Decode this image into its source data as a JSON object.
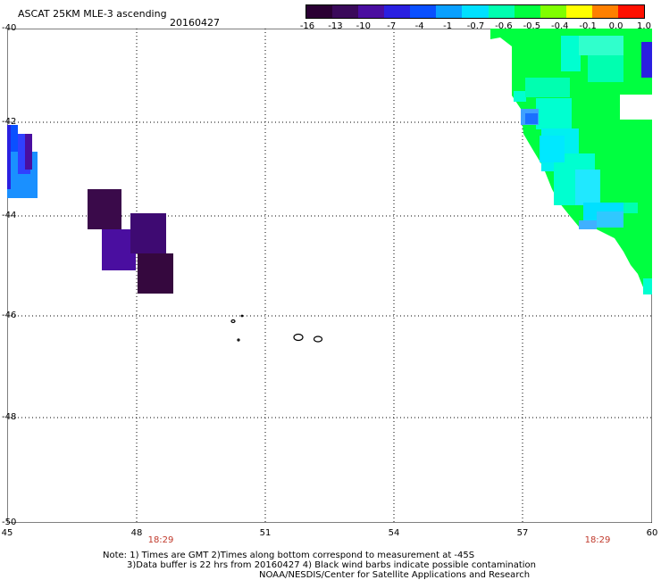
{
  "header": {
    "title": "ASCAT 25KM MLE-3 ascending",
    "date": "20160427"
  },
  "colorbar": {
    "tick_labels": [
      "-16",
      "-13",
      "-10",
      "-7",
      "-4",
      "-1",
      "-0.7",
      "-0.6",
      "-0.5",
      "-0.4",
      "-0.1",
      "0.0",
      "1.0"
    ],
    "colors": [
      "#2a0033",
      "#3a0a5a",
      "#4a0ea0",
      "#2a20e0",
      "#0a50ff",
      "#0aa0ff",
      "#00e0ff",
      "#00ffb0",
      "#00ff40",
      "#80ff00",
      "#ffff00",
      "#ff8000",
      "#ff1000"
    ]
  },
  "map": {
    "lat_labels": [
      "-40",
      "-42",
      "-44",
      "-46",
      "-48",
      "-50"
    ],
    "lon_labels": [
      "45",
      "48",
      "51",
      "54",
      "57",
      "60"
    ],
    "time_labels": [
      "18:29",
      "18:29"
    ]
  },
  "notes": {
    "line1": "Note: 1) Times are GMT 2)Times along bottom correspond to measurement at -45S",
    "line2": "3)Data buffer is 22 hrs from 20160427 4) Black wind barbs indicate possible contamination",
    "line3": "NOAA/NESDIS/Center for Satellite Applications and Research"
  }
}
